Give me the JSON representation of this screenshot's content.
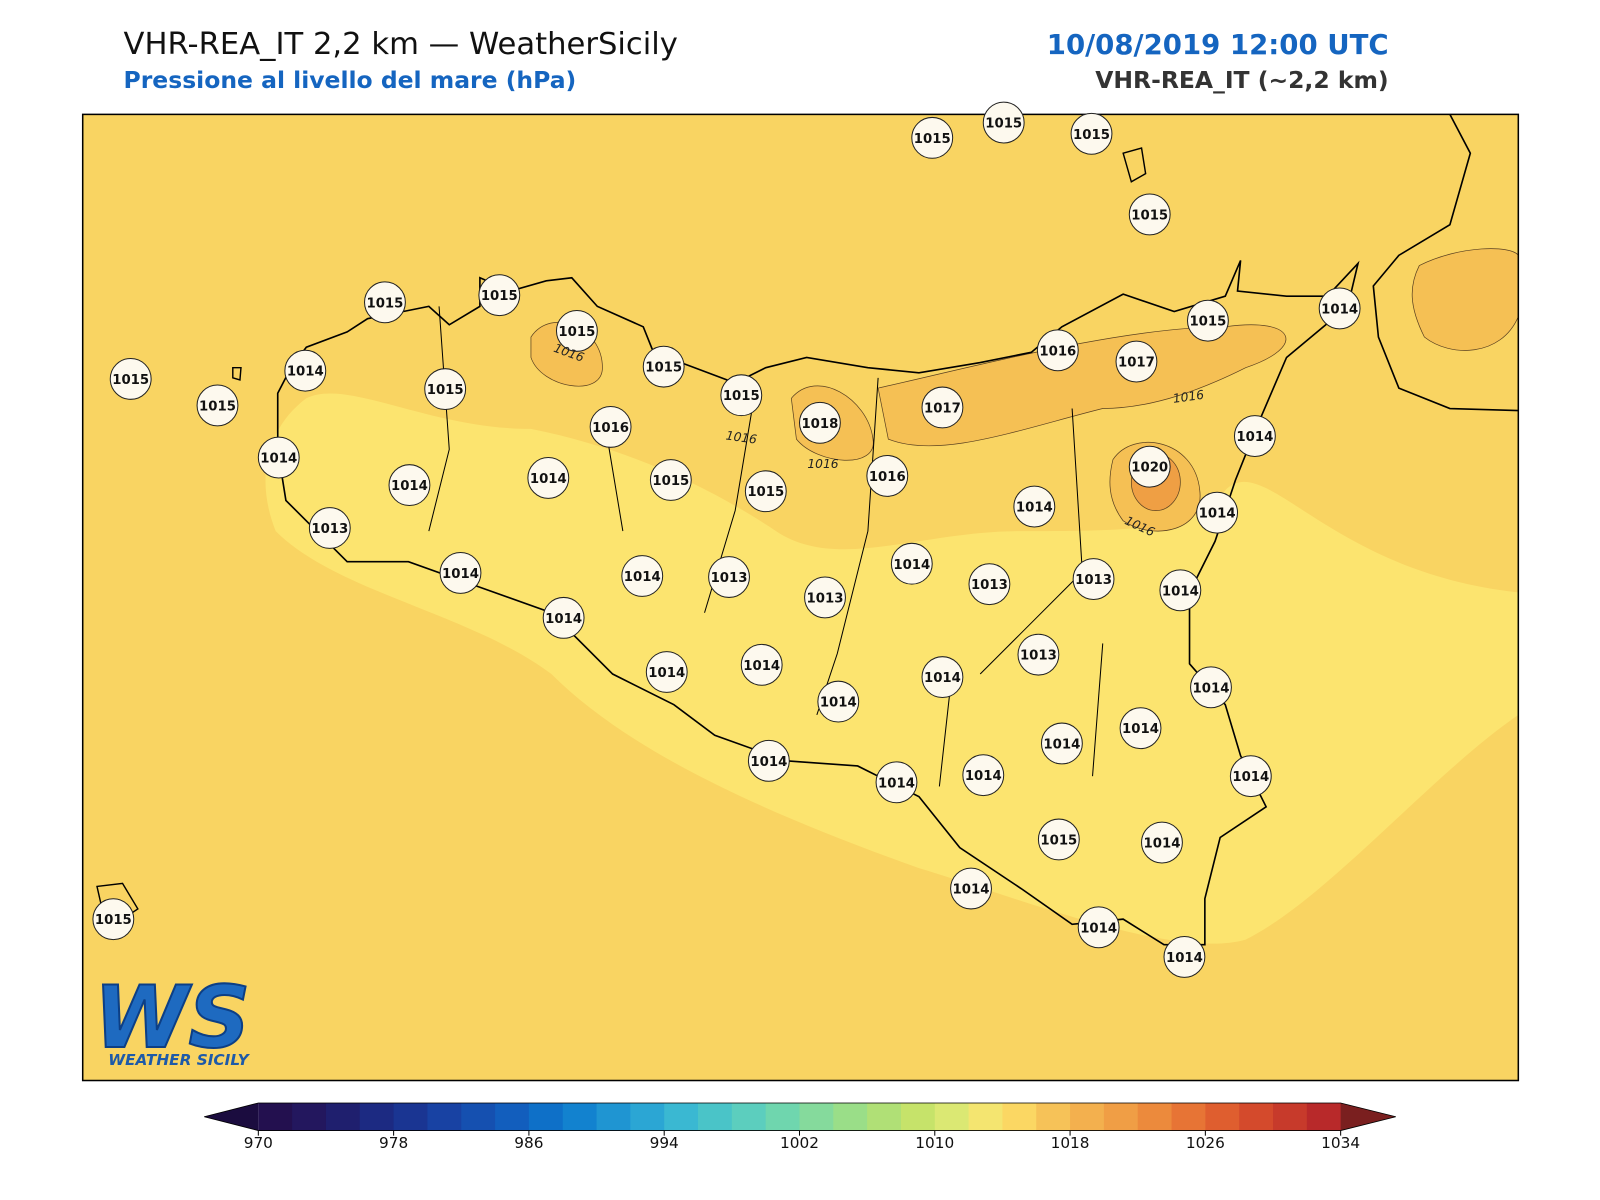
{
  "header": {
    "title": "VHR-REA_IT 2,2 km — WeatherSicily",
    "subtitle": "Pressione al livello del mare (hPa)",
    "datetime": "10/08/2019 12:00 UTC",
    "model": "VHR-REA_IT (~2,2 km)"
  },
  "stations": [
    1015,
    1015,
    1015,
    1015,
    1015,
    1015,
    1015,
    1015,
    1014,
    1015,
    1015,
    1015,
    1015,
    1016,
    1018,
    1017,
    1016,
    1017,
    1015,
    1014,
    1014,
    1014,
    1014,
    1014,
    1015,
    1015,
    1016,
    1020,
    1014,
    1014,
    1013,
    1014,
    1014,
    1013,
    1013,
    1014,
    1013,
    1013,
    1014,
    1014,
    1014,
    1014,
    1014,
    1014,
    1013,
    1014,
    1014,
    1014,
    1014,
    1014,
    1014,
    1014,
    1015,
    1014,
    1014,
    1014,
    1014,
    1015
  ],
  "contour_labels": [
    1016,
    1016,
    1016,
    1016,
    1016
  ],
  "logo": {
    "mark": "WS",
    "text": "WEATHER SICILY"
  },
  "colorbar": {
    "range": [
      970,
      1034
    ],
    "ticks": [
      970,
      978,
      986,
      994,
      1002,
      1010,
      1018,
      1026,
      1034
    ],
    "colors": [
      "#23104f",
      "#23175e",
      "#1f1f6e",
      "#1c2a82",
      "#1a3592",
      "#1842a3",
      "#1550b0",
      "#125ebd",
      "#0e70c8",
      "#1282cf",
      "#1f95d2",
      "#2ba6d4",
      "#3ab8d2",
      "#4ac4c8",
      "#5ccebe",
      "#6fd6ae",
      "#85da9c",
      "#9ade88",
      "#b0e076",
      "#c6e36a",
      "#dbe873",
      "#f4e570",
      "#fbd763",
      "#f6c258",
      "#f3b04e",
      "#f09e45",
      "#ec8a3c",
      "#e77435",
      "#df5e2f",
      "#d44a2c",
      "#c73a2b",
      "#b8292a"
    ],
    "under_color": "#1b0c3f",
    "over_color": "#7a1f1f"
  }
}
